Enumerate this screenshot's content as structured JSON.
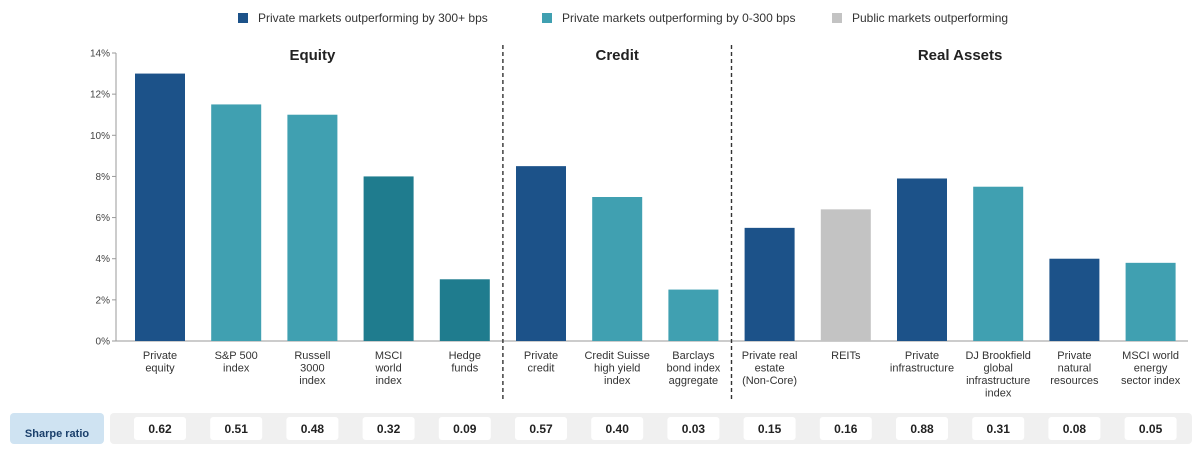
{
  "chart_data": {
    "type": "bar",
    "ylim": [
      0,
      14
    ],
    "yticks": [
      "0%",
      "2%",
      "4%",
      "6%",
      "8%",
      "10%",
      "12%",
      "14%"
    ],
    "grid": false,
    "legend_position": "top-center",
    "legend": [
      {
        "name": "Private markets outperforming by 300+ bps",
        "color": "#1c5289"
      },
      {
        "name": "Private markets outperforming by 0-300 bps",
        "color": "#40a0b1"
      },
      {
        "name": "Public markets outperforming",
        "color": "#c3c3c3"
      }
    ],
    "groups": [
      {
        "name": "Equity",
        "start": 0,
        "end": 4
      },
      {
        "name": "Credit",
        "start": 5,
        "end": 7
      },
      {
        "name": "Real Assets",
        "start": 8,
        "end": 13
      }
    ],
    "categories": [
      [
        "Private",
        "equity"
      ],
      [
        "S&P 500",
        "index"
      ],
      [
        "Russell",
        "3000",
        "index"
      ],
      [
        "MSCI",
        "world",
        "index"
      ],
      [
        "Hedge",
        "funds"
      ],
      [
        "Private",
        "credit"
      ],
      [
        "Credit Suisse",
        "high yield",
        "index"
      ],
      [
        "Barclays",
        "bond index",
        "aggregate"
      ],
      [
        "Private real",
        "estate",
        "(Non-Core)"
      ],
      [
        "REITs"
      ],
      [
        "Private",
        "infrastructure"
      ],
      [
        "DJ Brookfield",
        "global",
        "infrastructure",
        "index"
      ],
      [
        "Private",
        "natural",
        "resources"
      ],
      [
        "MSCI world",
        "energy",
        "sector index"
      ]
    ],
    "values": [
      13.0,
      11.5,
      11.0,
      8.0,
      3.0,
      8.5,
      7.0,
      2.5,
      5.5,
      6.4,
      7.9,
      7.5,
      4.0,
      3.8
    ],
    "colors": [
      "#1c5289",
      "#40a0b1",
      "#40a0b1",
      "#1f7c8e",
      "#1f7c8e",
      "#1c5289",
      "#40a0b1",
      "#40a0b1",
      "#1c5289",
      "#c3c3c3",
      "#1c5289",
      "#40a0b1",
      "#1c5289",
      "#40a0b1"
    ],
    "sharpe_label": "Sharpe ratio",
    "sharpe_values": [
      "0.62",
      "0.51",
      "0.48",
      "0.32",
      "0.09",
      "0.57",
      "0.40",
      "0.03",
      "0.15",
      "0.16",
      "0.88",
      "0.31",
      "0.08",
      "0.05"
    ]
  }
}
